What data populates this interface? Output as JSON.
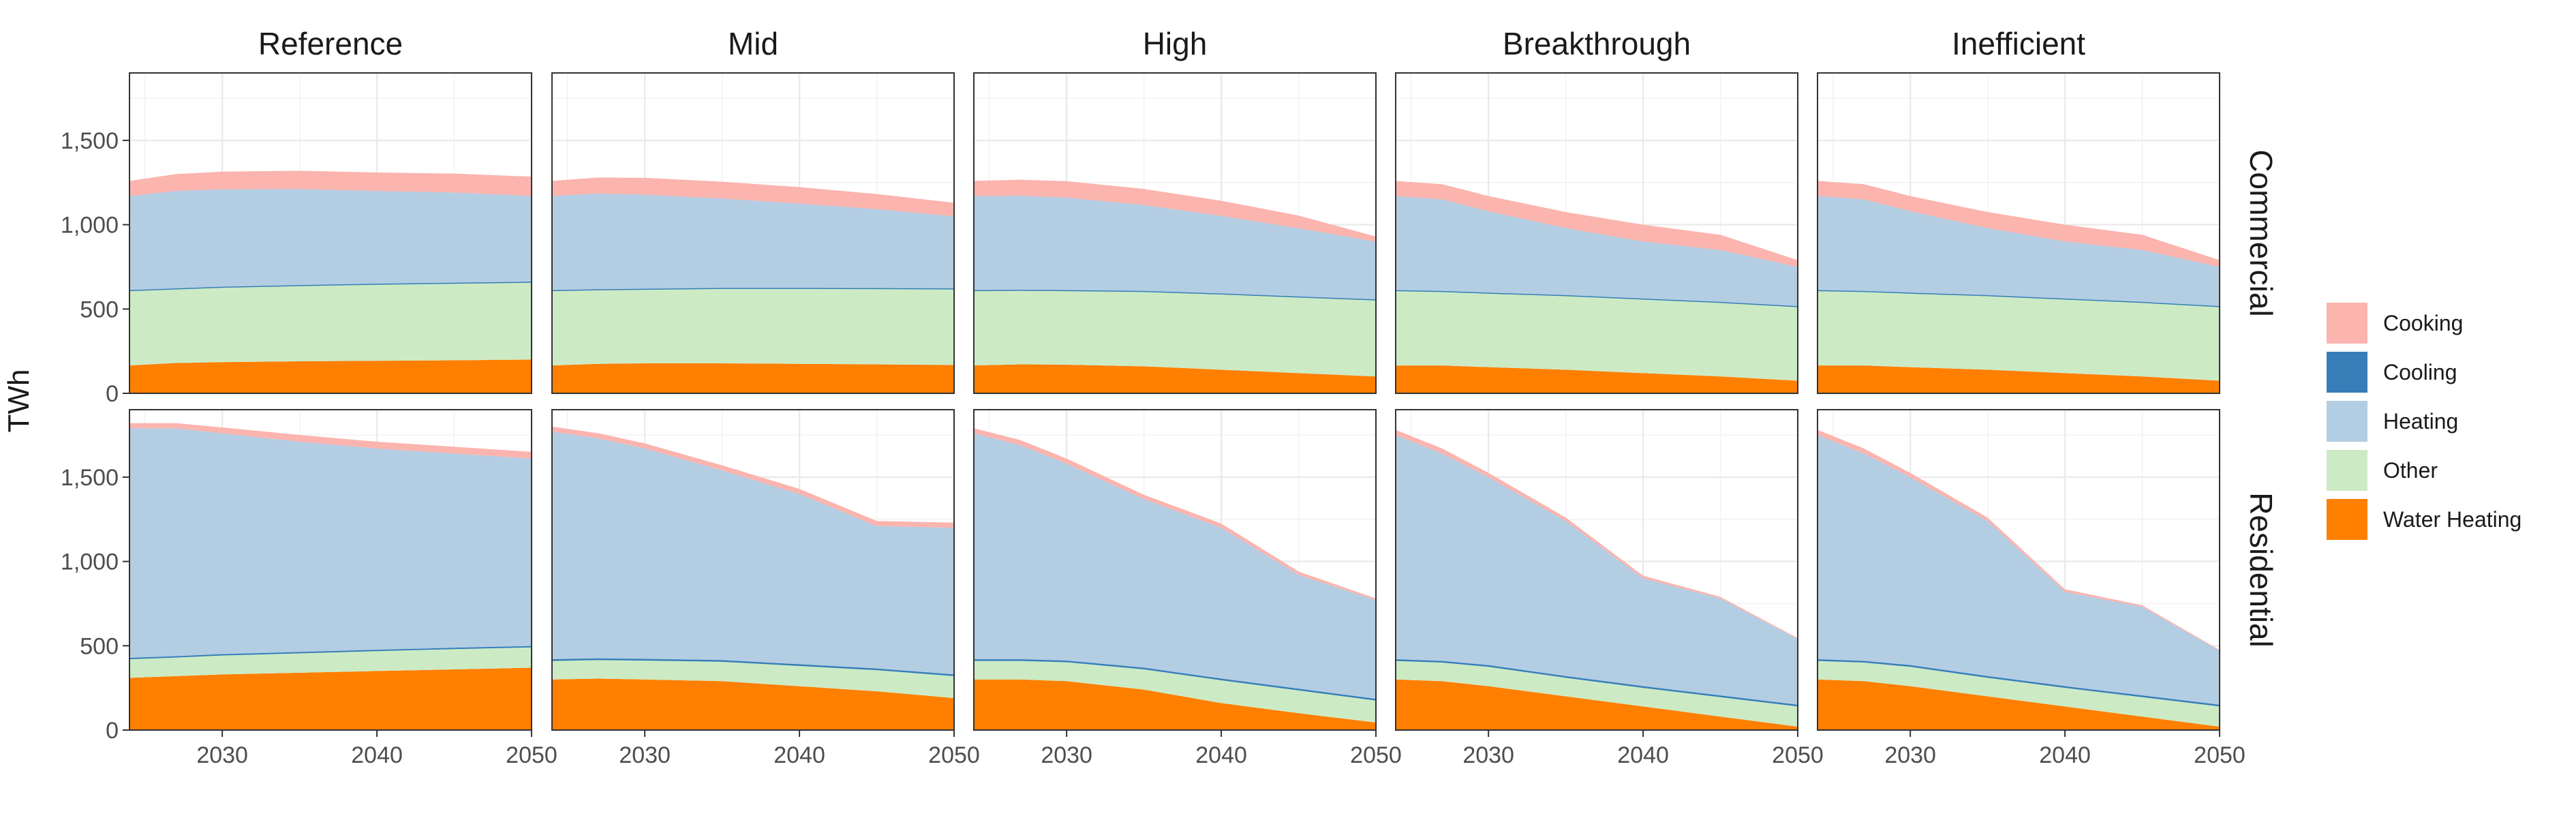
{
  "chart_data": {
    "type": "area",
    "ylabel": "TWh",
    "xlim": [
      2024,
      2050
    ],
    "ylim": [
      0,
      1900
    ],
    "x_ticks": [
      2030,
      2040,
      2050
    ],
    "y_ticks": [
      0,
      500,
      1000,
      1500
    ],
    "y_tick_labels": [
      "0",
      "500",
      "1,000",
      "1,500"
    ],
    "grid": true,
    "legend_position": "right",
    "columns": [
      "Reference",
      "Mid",
      "High",
      "Breakthrough",
      "Inefficient"
    ],
    "rows": [
      "Commercial",
      "Residential"
    ],
    "stack_order": [
      "Water Heating",
      "Other",
      "Cooling",
      "Heating",
      "Cooking"
    ],
    "legend": [
      {
        "label": "Cooking",
        "color": "#fbb4ae"
      },
      {
        "label": "Cooling",
        "color": "#377eb8"
      },
      {
        "label": "Heating",
        "color": "#b3cde3"
      },
      {
        "label": "Other",
        "color": "#ccebc5"
      },
      {
        "label": "Water Heating",
        "color": "#ff7f00"
      }
    ],
    "panels": [
      {
        "row": "Commercial",
        "column": "Reference",
        "x": [
          2024,
          2027,
          2030,
          2035,
          2040,
          2045,
          2050
        ],
        "series": {
          "Water Heating": [
            165,
            180,
            185,
            190,
            193,
            196,
            200
          ],
          "Other": [
            445,
            440,
            445,
            450,
            455,
            458,
            460
          ],
          "Cooling": [
            2,
            2,
            2,
            2,
            2,
            2,
            2
          ],
          "Heating": [
            558,
            578,
            578,
            570,
            550,
            535,
            508
          ],
          "Cooking": [
            90,
            100,
            105,
            108,
            110,
            112,
            115
          ]
        }
      },
      {
        "row": "Commercial",
        "column": "Mid",
        "x": [
          2024,
          2027,
          2030,
          2035,
          2040,
          2045,
          2050
        ],
        "series": {
          "Water Heating": [
            165,
            175,
            178,
            178,
            175,
            172,
            168
          ],
          "Other": [
            445,
            440,
            440,
            445,
            448,
            450,
            452
          ],
          "Cooling": [
            2,
            2,
            2,
            2,
            2,
            2,
            2
          ],
          "Heating": [
            558,
            568,
            558,
            530,
            500,
            468,
            428
          ],
          "Cooking": [
            90,
            95,
            100,
            100,
            98,
            90,
            80
          ]
        }
      },
      {
        "row": "Commercial",
        "column": "High",
        "x": [
          2024,
          2027,
          2030,
          2035,
          2040,
          2045,
          2050
        ],
        "series": {
          "Water Heating": [
            165,
            172,
            170,
            160,
            140,
            120,
            100
          ],
          "Other": [
            445,
            440,
            440,
            445,
            450,
            452,
            455
          ],
          "Cooling": [
            2,
            2,
            2,
            2,
            2,
            2,
            2
          ],
          "Heating": [
            558,
            558,
            548,
            510,
            460,
            405,
            343
          ],
          "Cooking": [
            90,
            95,
            98,
            95,
            90,
            75,
            30
          ]
        }
      },
      {
        "row": "Commercial",
        "column": "Breakthrough",
        "x": [
          2024,
          2027,
          2030,
          2035,
          2040,
          2045,
          2050
        ],
        "series": {
          "Water Heating": [
            165,
            165,
            155,
            140,
            120,
            100,
            75
          ],
          "Other": [
            445,
            440,
            440,
            440,
            440,
            440,
            440
          ],
          "Cooling": [
            2,
            2,
            2,
            2,
            2,
            2,
            2
          ],
          "Heating": [
            558,
            543,
            483,
            398,
            338,
            308,
            233
          ],
          "Cooking": [
            90,
            90,
            90,
            95,
            100,
            90,
            40
          ]
        }
      },
      {
        "row": "Commercial",
        "column": "Inefficient",
        "x": [
          2024,
          2027,
          2030,
          2035,
          2040,
          2045,
          2050
        ],
        "series": {
          "Water Heating": [
            165,
            165,
            155,
            140,
            120,
            100,
            75
          ],
          "Other": [
            445,
            440,
            440,
            440,
            440,
            440,
            440
          ],
          "Cooling": [
            2,
            2,
            2,
            2,
            2,
            2,
            2
          ],
          "Heating": [
            558,
            543,
            483,
            398,
            338,
            308,
            233
          ],
          "Cooking": [
            90,
            90,
            90,
            95,
            100,
            90,
            40
          ]
        }
      },
      {
        "row": "Residential",
        "column": "Reference",
        "x": [
          2024,
          2027,
          2030,
          2035,
          2040,
          2045,
          2050
        ],
        "series": {
          "Water Heating": [
            310,
            320,
            330,
            340,
            350,
            360,
            370
          ],
          "Other": [
            110,
            110,
            112,
            115,
            118,
            120,
            120
          ],
          "Cooling": [
            8,
            8,
            8,
            8,
            8,
            8,
            8
          ],
          "Heating": [
            1362,
            1352,
            1310,
            1247,
            1194,
            1152,
            1112
          ],
          "Cooking": [
            30,
            30,
            35,
            40,
            40,
            40,
            40
          ]
        }
      },
      {
        "row": "Residential",
        "column": "Mid",
        "x": [
          2024,
          2027,
          2030,
          2035,
          2040,
          2045,
          2050
        ],
        "series": {
          "Water Heating": [
            300,
            305,
            300,
            290,
            260,
            230,
            190
          ],
          "Other": [
            110,
            110,
            112,
            115,
            120,
            125,
            130
          ],
          "Cooling": [
            10,
            10,
            10,
            10,
            10,
            10,
            10
          ],
          "Heating": [
            1350,
            1305,
            1248,
            1125,
            1010,
            845,
            870
          ],
          "Cooking": [
            30,
            30,
            30,
            30,
            30,
            30,
            30
          ]
        }
      },
      {
        "row": "Residential",
        "column": "High",
        "x": [
          2024,
          2027,
          2030,
          2035,
          2040,
          2045,
          2050
        ],
        "series": {
          "Water Heating": [
            300,
            300,
            290,
            240,
            160,
            100,
            45
          ],
          "Other": [
            110,
            110,
            112,
            120,
            135,
            135,
            130
          ],
          "Cooling": [
            10,
            10,
            10,
            10,
            10,
            10,
            10
          ],
          "Heating": [
            1340,
            1270,
            1168,
            1000,
            895,
            675,
            585
          ],
          "Cooking": [
            30,
            30,
            30,
            25,
            25,
            20,
            10
          ]
        }
      },
      {
        "row": "Residential",
        "column": "Breakthrough",
        "x": [
          2024,
          2027,
          2030,
          2035,
          2040,
          2045,
          2050
        ],
        "series": {
          "Water Heating": [
            300,
            290,
            260,
            200,
            140,
            80,
            20
          ],
          "Other": [
            110,
            110,
            115,
            110,
            110,
            115,
            120
          ],
          "Cooling": [
            10,
            10,
            10,
            10,
            10,
            10,
            10
          ],
          "Heating": [
            1330,
            1230,
            1115,
            920,
            640,
            575,
            390
          ],
          "Cooking": [
            30,
            30,
            25,
            20,
            15,
            10,
            5
          ]
        }
      },
      {
        "row": "Residential",
        "column": "Inefficient",
        "x": [
          2024,
          2027,
          2030,
          2035,
          2040,
          2045,
          2050
        ],
        "series": {
          "Water Heating": [
            300,
            290,
            260,
            200,
            140,
            80,
            20
          ],
          "Other": [
            110,
            110,
            115,
            110,
            110,
            115,
            120
          ],
          "Cooling": [
            10,
            10,
            10,
            10,
            10,
            10,
            10
          ],
          "Heating": [
            1330,
            1230,
            1115,
            920,
            560,
            525,
            320
          ],
          "Cooking": [
            30,
            30,
            25,
            20,
            15,
            10,
            5
          ]
        }
      }
    ]
  }
}
